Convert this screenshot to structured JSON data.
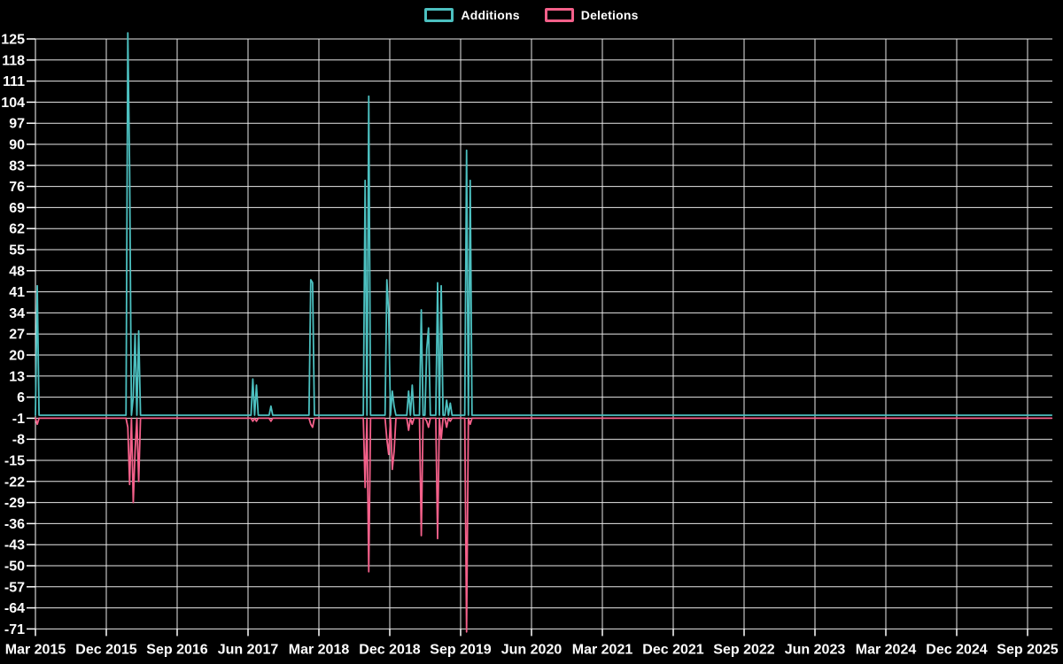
{
  "page": {
    "background": "#000000"
  },
  "legend": {
    "items": [
      {
        "label": "Additions",
        "color": "#4CC0C0"
      },
      {
        "label": "Deletions",
        "color": "#F4608A"
      }
    ]
  },
  "chart_data": {
    "type": "line",
    "title": "",
    "description": "Weekly code additions (positive) and deletions (negative) over time",
    "grid": true,
    "legend_position": "top-center",
    "colors": {
      "background": "#000000",
      "grid": "#e8e8e8",
      "axis_text": "#ffffff",
      "additions": "#4CC0C0",
      "deletions": "#F4608A"
    },
    "x_axis": {
      "tick_labels": [
        "Mar 2015",
        "Dec 2015",
        "Sep 2016",
        "Jun 2017",
        "Mar 2018",
        "Dec 2018",
        "Sep 2019",
        "Jun 2020",
        "Mar 2021",
        "Dec 2021",
        "Sep 2022",
        "Jun 2023",
        "Mar 2024",
        "Dec 2024",
        "Sep 2025"
      ],
      "start_label": "Mar 2015",
      "weeks_per_tick": 39
    },
    "y_axis": {
      "min": -71,
      "max": 125,
      "tick_step": 7,
      "ticks": [
        125,
        118,
        111,
        104,
        97,
        90,
        83,
        76,
        69,
        62,
        55,
        48,
        41,
        34,
        27,
        20,
        13,
        6,
        -1,
        -8,
        -15,
        -22,
        -29,
        -36,
        -43,
        -50,
        -57,
        -64,
        -71
      ]
    },
    "series": [
      {
        "name": "Additions",
        "color": "#4CC0C0",
        "baseline": 0,
        "points": [
          {
            "week": 1,
            "date": "Mar 2015",
            "value": 43
          },
          {
            "week": 51,
            "date": "Feb 2016",
            "value": 127
          },
          {
            "week": 52,
            "date": "Feb 2016",
            "value": 81
          },
          {
            "week": 54,
            "date": "Mar 2016",
            "value": 6
          },
          {
            "week": 55,
            "date": "Mar 2016",
            "value": 27
          },
          {
            "week": 57,
            "date": "Apr 2016",
            "value": 28
          },
          {
            "week": 120,
            "date": "Jun 2017",
            "value": 12
          },
          {
            "week": 122,
            "date": "Jul 2017",
            "value": 10
          },
          {
            "week": 130,
            "date": "Aug 2017",
            "value": 3
          },
          {
            "week": 152,
            "date": "Jan 2018",
            "value": 45
          },
          {
            "week": 153,
            "date": "Feb 2018",
            "value": 44
          },
          {
            "week": 182,
            "date": "Aug 2018",
            "value": 78
          },
          {
            "week": 184,
            "date": "Sep 2018",
            "value": 106
          },
          {
            "week": 194,
            "date": "Nov 2018",
            "value": 45
          },
          {
            "week": 195,
            "date": "Nov 2018",
            "value": 34
          },
          {
            "week": 197,
            "date": "Dec 2018",
            "value": 8
          },
          {
            "week": 198,
            "date": "Dec 2018",
            "value": 3
          },
          {
            "week": 206,
            "date": "Feb 2019",
            "value": 8
          },
          {
            "week": 208,
            "date": "Feb 2019",
            "value": 10
          },
          {
            "week": 213,
            "date": "Apr 2019",
            "value": 35
          },
          {
            "week": 216,
            "date": "Apr 2019",
            "value": 22
          },
          {
            "week": 217,
            "date": "Apr 2019",
            "value": 29
          },
          {
            "week": 222,
            "date": "Jun 2019",
            "value": 44
          },
          {
            "week": 224,
            "date": "Jun 2019",
            "value": 43
          },
          {
            "week": 227,
            "date": "Jul 2019",
            "value": 5
          },
          {
            "week": 229,
            "date": "Jul 2019",
            "value": 4
          },
          {
            "week": 238,
            "date": "Sep 2019",
            "value": 88
          },
          {
            "week": 240,
            "date": "Oct 2019",
            "value": 78
          }
        ]
      },
      {
        "name": "Deletions",
        "color": "#F4608A",
        "baseline": -1,
        "points": [
          {
            "week": 1,
            "date": "Mar 2015",
            "value": -3
          },
          {
            "week": 51,
            "date": "Feb 2016",
            "value": -4
          },
          {
            "week": 52,
            "date": "Feb 2016",
            "value": -23
          },
          {
            "week": 54,
            "date": "Mar 2016",
            "value": -29
          },
          {
            "week": 55,
            "date": "Mar 2016",
            "value": -12
          },
          {
            "week": 57,
            "date": "Apr 2016",
            "value": -22
          },
          {
            "week": 120,
            "date": "Jun 2017",
            "value": -2
          },
          {
            "week": 122,
            "date": "Jul 2017",
            "value": -2
          },
          {
            "week": 130,
            "date": "Aug 2017",
            "value": -2
          },
          {
            "week": 152,
            "date": "Jan 2018",
            "value": -3
          },
          {
            "week": 153,
            "date": "Feb 2018",
            "value": -4
          },
          {
            "week": 182,
            "date": "Aug 2018",
            "value": -24
          },
          {
            "week": 184,
            "date": "Sep 2018",
            "value": -52
          },
          {
            "week": 194,
            "date": "Nov 2018",
            "value": -8
          },
          {
            "week": 195,
            "date": "Nov 2018",
            "value": -13
          },
          {
            "week": 197,
            "date": "Dec 2018",
            "value": -18
          },
          {
            "week": 198,
            "date": "Dec 2018",
            "value": -12
          },
          {
            "week": 206,
            "date": "Feb 2019",
            "value": -5
          },
          {
            "week": 208,
            "date": "Feb 2019",
            "value": -3
          },
          {
            "week": 213,
            "date": "Apr 2019",
            "value": -40
          },
          {
            "week": 216,
            "date": "Apr 2019",
            "value": -2
          },
          {
            "week": 217,
            "date": "Apr 2019",
            "value": -4
          },
          {
            "week": 222,
            "date": "Jun 2019",
            "value": -41
          },
          {
            "week": 224,
            "date": "Jun 2019",
            "value": -8
          },
          {
            "week": 227,
            "date": "Jul 2019",
            "value": -4
          },
          {
            "week": 229,
            "date": "Jul 2019",
            "value": -2
          },
          {
            "week": 238,
            "date": "Sep 2019",
            "value": -72
          },
          {
            "week": 240,
            "date": "Oct 2019",
            "value": -3
          }
        ]
      }
    ]
  }
}
